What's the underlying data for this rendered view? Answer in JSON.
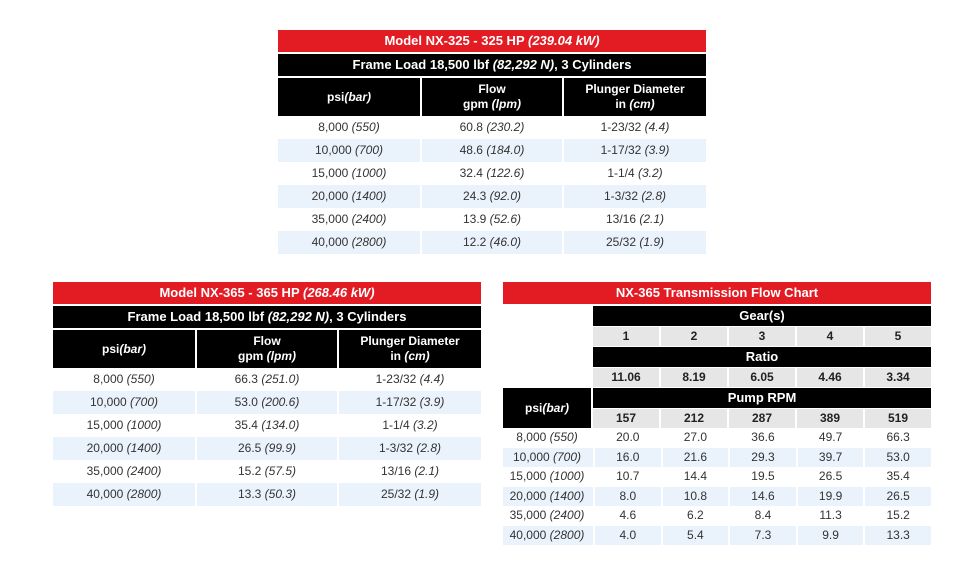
{
  "t1": {
    "title_main": "Model NX-325 - 325 HP ",
    "title_italic": "(239.04 kW)",
    "subtitle_a": "Frame Load 18,500 lbf ",
    "subtitle_italic": "(82,292 N)",
    "subtitle_b": ", 3 Cylinders",
    "col1_main": "psi ",
    "col1_italic": "(bar)",
    "col2_line1": "Flow",
    "col2_main": "gpm ",
    "col2_italic": "(lpm)",
    "col3_line1": "Plunger Diameter",
    "col3_main": "in ",
    "col3_italic": "(cm)",
    "rows": [
      {
        "psi": "8,000 ",
        "bar": "(550)",
        "gpm": "60.8 ",
        "lpm": "(230.2)",
        "in": "1-23/32 ",
        "cm": "(4.4)"
      },
      {
        "psi": "10,000 ",
        "bar": "(700)",
        "gpm": "48.6 ",
        "lpm": "(184.0)",
        "in": "1-17/32 ",
        "cm": "(3.9)"
      },
      {
        "psi": "15,000 ",
        "bar": "(1000)",
        "gpm": "32.4 ",
        "lpm": "(122.6)",
        "in": "1-1/4 ",
        "cm": "(3.2)"
      },
      {
        "psi": "20,000 ",
        "bar": "(1400)",
        "gpm": "24.3 ",
        "lpm": "(92.0)",
        "in": "1-3/32 ",
        "cm": "(2.8)"
      },
      {
        "psi": "35,000 ",
        "bar": "(2400)",
        "gpm": "13.9 ",
        "lpm": "(52.6)",
        "in": "13/16 ",
        "cm": "(2.1)"
      },
      {
        "psi": "40,000 ",
        "bar": "(2800)",
        "gpm": "12.2 ",
        "lpm": "(46.0)",
        "in": "25/32 ",
        "cm": "(1.9)"
      }
    ]
  },
  "t2": {
    "title_main": "Model NX-365 - 365 HP ",
    "title_italic": "(268.46 kW)",
    "subtitle_a": "Frame Load 18,500 lbf ",
    "subtitle_italic": "(82,292 N)",
    "subtitle_b": ", 3 Cylinders",
    "col1_main": "psi ",
    "col1_italic": "(bar)",
    "col2_line1": "Flow",
    "col2_main": "gpm ",
    "col2_italic": "(lpm)",
    "col3_line1": "Plunger Diameter",
    "col3_main": "in ",
    "col3_italic": "(cm)",
    "rows": [
      {
        "psi": "8,000 ",
        "bar": "(550)",
        "gpm": "66.3 ",
        "lpm": "(251.0)",
        "in": "1-23/32 ",
        "cm": "(4.4)"
      },
      {
        "psi": "10,000 ",
        "bar": "(700)",
        "gpm": "53.0 ",
        "lpm": "(200.6)",
        "in": "1-17/32 ",
        "cm": "(3.9)"
      },
      {
        "psi": "15,000 ",
        "bar": "(1000)",
        "gpm": "35.4 ",
        "lpm": "(134.0)",
        "in": "1-1/4 ",
        "cm": "(3.2)"
      },
      {
        "psi": "20,000 ",
        "bar": "(1400)",
        "gpm": "26.5 ",
        "lpm": "(99.9)",
        "in": "1-3/32 ",
        "cm": "(2.8)"
      },
      {
        "psi": "35,000 ",
        "bar": "(2400)",
        "gpm": "15.2 ",
        "lpm": "(57.5)",
        "in": "13/16 ",
        "cm": "(2.1)"
      },
      {
        "psi": "40,000 ",
        "bar": "(2800)",
        "gpm": "13.3 ",
        "lpm": "(50.3)",
        "in": "25/32 ",
        "cm": "(1.9)"
      }
    ]
  },
  "t3": {
    "title": "NX-365 Transmission Flow Chart",
    "gears_label": "Gear(s)",
    "gears": [
      "1",
      "2",
      "3",
      "4",
      "5"
    ],
    "ratio_label": "Ratio",
    "ratios": [
      "11.06",
      "8.19",
      "6.05",
      "4.46",
      "3.34"
    ],
    "rpm_label": "Pump RPM",
    "rpms": [
      "157",
      "212",
      "287",
      "389",
      "519"
    ],
    "psi_main": "psi ",
    "psi_italic": "(bar)",
    "rows": [
      {
        "psi": "8,000 ",
        "bar": "(550)",
        "v": [
          "20.0",
          "27.0",
          "36.6",
          "49.7",
          "66.3"
        ]
      },
      {
        "psi": "10,000 ",
        "bar": "(700)",
        "v": [
          "16.0",
          "21.6",
          "29.3",
          "39.7",
          "53.0"
        ]
      },
      {
        "psi": "15,000 ",
        "bar": "(1000)",
        "v": [
          "10.7",
          "14.4",
          "19.5",
          "26.5",
          "35.4"
        ]
      },
      {
        "psi": "20,000 ",
        "bar": "(1400)",
        "v": [
          "8.0",
          "10.8",
          "14.6",
          "19.9",
          "26.5"
        ]
      },
      {
        "psi": "35,000 ",
        "bar": "(2400)",
        "v": [
          "4.6",
          "6.2",
          "8.4",
          "11.3",
          "15.2"
        ]
      },
      {
        "psi": "40,000 ",
        "bar": "(2800)",
        "v": [
          "4.0",
          "5.4",
          "7.3",
          "9.9",
          "13.3"
        ]
      }
    ]
  }
}
